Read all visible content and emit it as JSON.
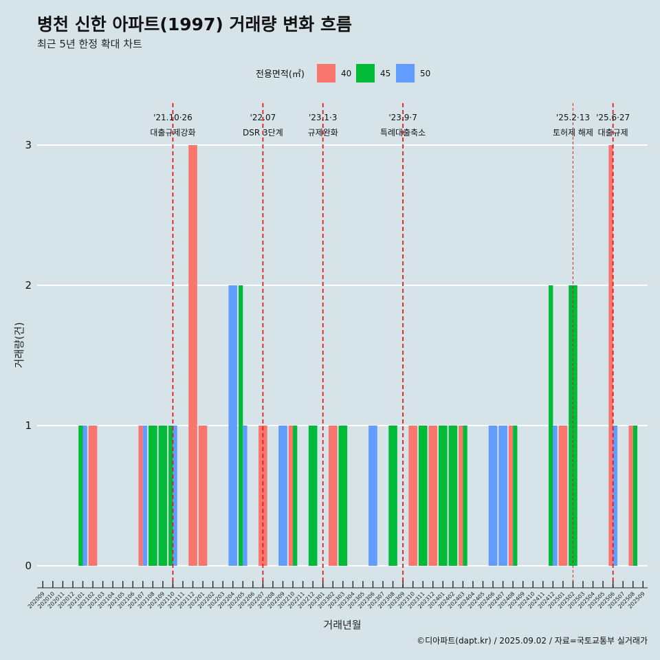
{
  "title": "병천 신한 아파트(1997) 거래량 변화 흐름",
  "subtitle": "최근 5년 한정 확대 차트",
  "caption": "©디아파트(dapt.kr) / 2025.09.02 / 자료=국토교통부 실거래가",
  "colors": {
    "background": "#d6e4ea",
    "grid": "#ffffff",
    "event_line": "#e8191c"
  },
  "chart_data": {
    "type": "bar",
    "xlabel": "거래년월",
    "ylabel": "거래량(건)",
    "ylim": [
      0,
      3
    ],
    "yticks": [
      0,
      1,
      2,
      3
    ],
    "legend": {
      "title": "전용면적(㎡)",
      "position": "top",
      "entries": [
        {
          "label": "40",
          "color": "#f8766d"
        },
        {
          "label": "45",
          "color": "#00ba38"
        },
        {
          "label": "50",
          "color": "#619cff"
        }
      ]
    },
    "x_labels": [
      "202009",
      "202010",
      "202011",
      "202012",
      "202101",
      "202102",
      "202103",
      "202104",
      "202105",
      "202106",
      "202107",
      "202108",
      "202109",
      "202110",
      "202111",
      "202112",
      "202201",
      "202202",
      "202203",
      "202204",
      "202205",
      "202206",
      "202207",
      "202208",
      "202209",
      "202210",
      "202211",
      "202212",
      "202301",
      "202302",
      "202303",
      "202304",
      "202305",
      "202306",
      "202307",
      "202308",
      "202309",
      "202310",
      "202311",
      "202312",
      "202401",
      "202402",
      "202403",
      "202404",
      "202405",
      "202406",
      "202407",
      "202408",
      "202409",
      "202410",
      "202411",
      "202412",
      "202501",
      "202502",
      "202503",
      "202504",
      "202505",
      "202506",
      "202507",
      "202508",
      "202509"
    ],
    "bars": [
      {
        "month": "202101",
        "values": [
          0,
          1,
          1
        ]
      },
      {
        "month": "202102",
        "values": [
          1,
          0,
          0
        ]
      },
      {
        "month": "202107",
        "values": [
          1,
          0,
          1
        ]
      },
      {
        "month": "202108",
        "values": [
          0,
          1,
          0
        ]
      },
      {
        "month": "202109",
        "values": [
          0,
          1,
          0
        ]
      },
      {
        "month": "202110",
        "values": [
          0,
          1,
          1
        ]
      },
      {
        "month": "202112",
        "values": [
          3,
          0,
          0
        ]
      },
      {
        "month": "202201",
        "values": [
          1,
          0,
          0
        ]
      },
      {
        "month": "202204",
        "values": [
          0,
          0,
          2
        ]
      },
      {
        "month": "202205",
        "values": [
          0,
          2,
          1
        ]
      },
      {
        "month": "202207",
        "values": [
          1,
          0,
          0
        ]
      },
      {
        "month": "202209",
        "values": [
          0,
          0,
          1
        ]
      },
      {
        "month": "202210",
        "values": [
          1,
          1,
          0
        ]
      },
      {
        "month": "202212",
        "values": [
          0,
          1,
          0
        ]
      },
      {
        "month": "202302",
        "values": [
          1,
          0,
          0
        ]
      },
      {
        "month": "202303",
        "values": [
          0,
          1,
          0
        ]
      },
      {
        "month": "202306",
        "values": [
          0,
          0,
          1
        ]
      },
      {
        "month": "202308",
        "values": [
          0,
          1,
          0
        ]
      },
      {
        "month": "202310",
        "values": [
          1,
          0,
          0
        ]
      },
      {
        "month": "202311",
        "values": [
          0,
          1,
          0
        ]
      },
      {
        "month": "202312",
        "values": [
          1,
          0,
          0
        ]
      },
      {
        "month": "202401",
        "values": [
          0,
          1,
          0
        ]
      },
      {
        "month": "202402",
        "values": [
          0,
          1,
          0
        ]
      },
      {
        "month": "202403",
        "values": [
          1,
          1,
          0
        ]
      },
      {
        "month": "202406",
        "values": [
          0,
          0,
          1
        ]
      },
      {
        "month": "202407",
        "values": [
          0,
          0,
          1
        ]
      },
      {
        "month": "202408",
        "values": [
          1,
          1,
          0
        ]
      },
      {
        "month": "202412",
        "values": [
          0,
          2,
          1
        ]
      },
      {
        "month": "202501",
        "values": [
          1,
          0,
          0
        ]
      },
      {
        "month": "202502",
        "values": [
          0,
          2,
          0
        ]
      },
      {
        "month": "202506",
        "values": [
          3,
          0,
          1
        ]
      },
      {
        "month": "202508",
        "values": [
          1,
          1,
          0
        ]
      }
    ],
    "events": [
      {
        "month": "202110",
        "label_date": "'21.10·26",
        "label": "대출규제강화",
        "style": "dashed"
      },
      {
        "month": "202207",
        "label_date": "'22.07",
        "label": "DSR 3단계",
        "style": "dashed"
      },
      {
        "month": "202301",
        "label_date": "'23.1·3",
        "label": "규제완화",
        "style": "dashed"
      },
      {
        "month": "202309",
        "label_date": "'23.9·7",
        "label": "특례대출축소",
        "style": "dashed"
      },
      {
        "month": "202502",
        "label_date": "'25.2·13",
        "label": "토허제 해제",
        "style": "thin"
      },
      {
        "month": "202506",
        "label_date": "'25.6·27",
        "label": "대출규제",
        "style": "dashed"
      }
    ]
  }
}
